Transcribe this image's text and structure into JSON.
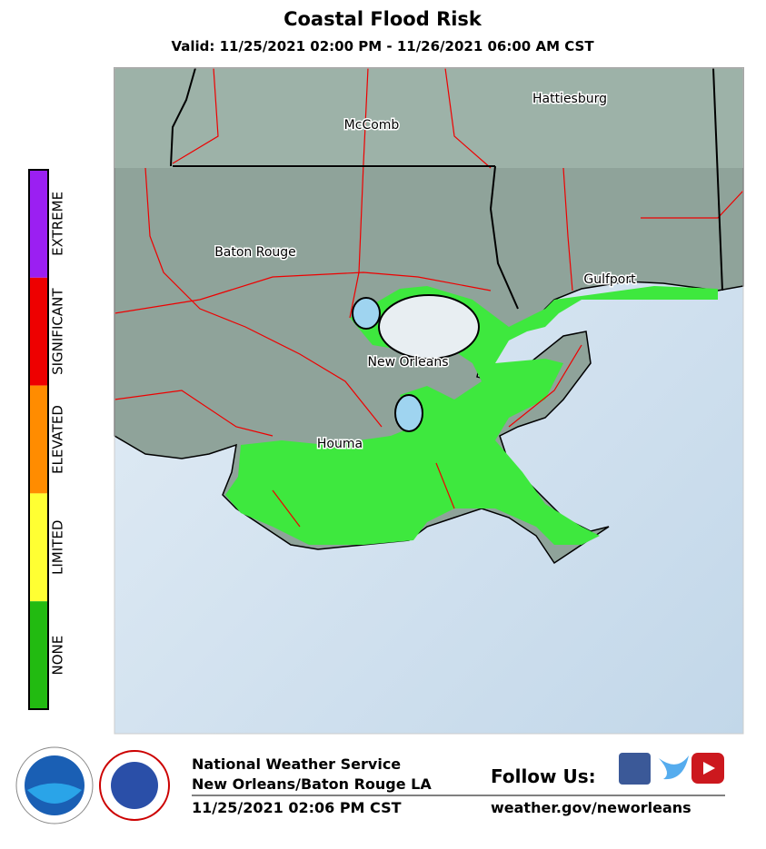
{
  "header": {
    "title": "Coastal Flood Risk",
    "subtitle": "Valid: 11/25/2021 02:00 PM - 11/26/2021 06:00 AM CST"
  },
  "legend": {
    "levels": [
      {
        "label": "EXTREME",
        "color": "#9b1ff2"
      },
      {
        "label": "SIGNIFICANT",
        "color": "#ee0000"
      },
      {
        "label": "ELEVATED",
        "color": "#ff8c00"
      },
      {
        "label": "LIMITED",
        "color": "#ffff33"
      },
      {
        "label": "NONE",
        "color": "#22bb11"
      }
    ]
  },
  "map": {
    "cities": [
      "Hattiesburg",
      "McComb",
      "Baton Rouge",
      "Gulfport",
      "New Orleans",
      "Houma"
    ]
  },
  "footer": {
    "office": "National Weather Service",
    "location": "New Orleans/Baton Rouge LA",
    "issued": "11/25/2021 02:06 PM CST",
    "follow": "Follow Us:",
    "website": "weather.gov/neworleans"
  }
}
